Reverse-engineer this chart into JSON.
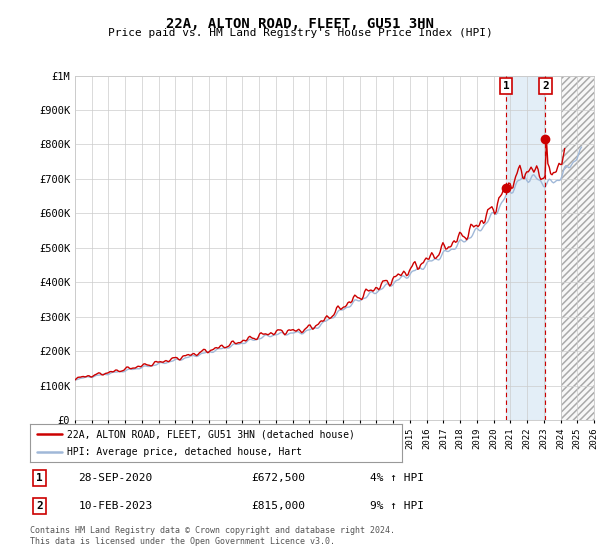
{
  "title": "22A, ALTON ROAD, FLEET, GU51 3HN",
  "subtitle": "Price paid vs. HM Land Registry's House Price Index (HPI)",
  "x_start_year": 1995,
  "x_end_year": 2026,
  "y_min": 0,
  "y_max": 1000000,
  "y_ticks": [
    0,
    100000,
    200000,
    300000,
    400000,
    500000,
    600000,
    700000,
    800000,
    900000,
    1000000
  ],
  "y_tick_labels": [
    "£0",
    "£100K",
    "£200K",
    "£300K",
    "£400K",
    "£500K",
    "£600K",
    "£700K",
    "£800K",
    "£900K",
    "£1M"
  ],
  "hpi_color": "#a0b8d8",
  "price_color": "#cc0000",
  "marker1_year": 2020.75,
  "marker1_price": 672500,
  "marker2_year": 2023.1,
  "marker2_price": 815000,
  "marker1_label": "1",
  "marker2_label": "2",
  "legend_line1": "22A, ALTON ROAD, FLEET, GU51 3HN (detached house)",
  "legend_line2": "HPI: Average price, detached house, Hart",
  "annotation1_date": "28-SEP-2020",
  "annotation1_price": "£672,500",
  "annotation1_hpi": "4% ↑ HPI",
  "annotation2_date": "10-FEB-2023",
  "annotation2_price": "£815,000",
  "annotation2_hpi": "9% ↑ HPI",
  "footer": "Contains HM Land Registry data © Crown copyright and database right 2024.\nThis data is licensed under the Open Government Licence v3.0.",
  "background_color": "#ffffff",
  "grid_color": "#cccccc",
  "shade_color": "#ddeaf5",
  "hatch_color": "#bbbbbb"
}
